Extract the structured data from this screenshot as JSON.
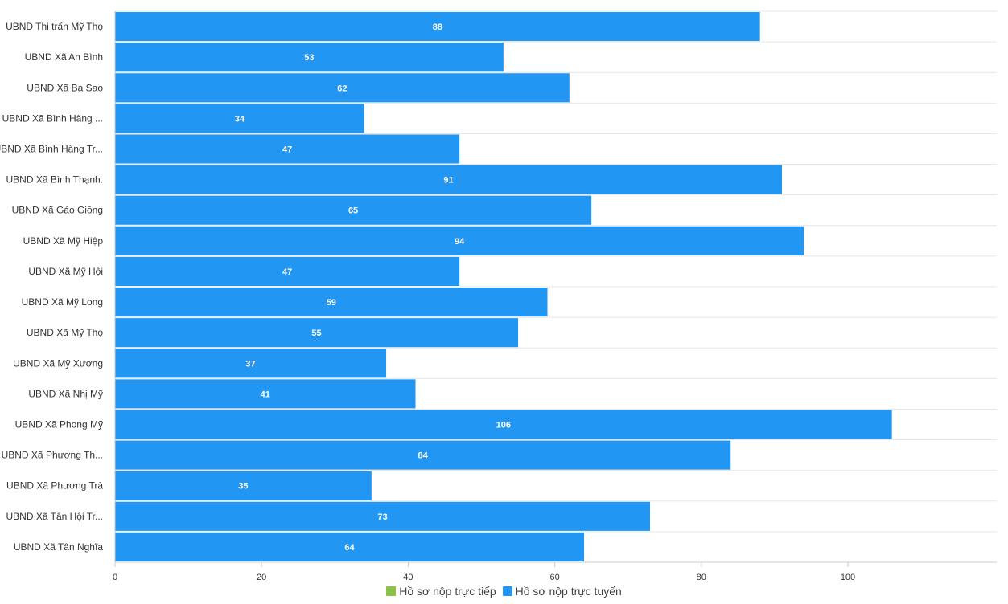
{
  "chart_data": {
    "type": "bar",
    "orientation": "horizontal",
    "categories": [
      "UBND Thị trấn Mỹ Thọ",
      "UBND Xã An Bình",
      "UBND Xã Ba Sao",
      "UBND Xã Bình Hàng ...",
      "UBND Xã Bình Hàng Tr...",
      "UBND Xã Bình Thạnh.",
      "UBND Xã Gáo Giồng",
      "UBND Xã Mỹ Hiệp",
      "UBND Xã Mỹ Hội",
      "UBND Xã Mỹ Long",
      "UBND Xã Mỹ Thọ",
      "UBND Xã Mỹ Xương",
      "UBND Xã Nhị Mỹ",
      "UBND Xã Phong Mỹ",
      "UBND Xã Phương Th...",
      "UBND Xã Phương Trà",
      "UBND Xã Tân Hội Tr...",
      "UBND Xã Tân Nghĩa"
    ],
    "series": [
      {
        "name": "Hồ sơ nộp trực tiếp",
        "color": "#8bc34a",
        "values": [
          0,
          0,
          0,
          0,
          0,
          0,
          0,
          0,
          0,
          0,
          0,
          0,
          0,
          0,
          0,
          0,
          0,
          0
        ]
      },
      {
        "name": "Hồ sơ nộp trực tuyến",
        "color": "#2196f3",
        "values": [
          88,
          53,
          62,
          34,
          47,
          91,
          65,
          94,
          47,
          59,
          55,
          37,
          41,
          106,
          84,
          35,
          73,
          64
        ]
      }
    ],
    "xlim": [
      0,
      120
    ],
    "xticks": [
      0,
      20,
      40,
      60,
      80,
      100
    ],
    "grid": true,
    "legend_position": "bottom",
    "data_labels": true
  }
}
